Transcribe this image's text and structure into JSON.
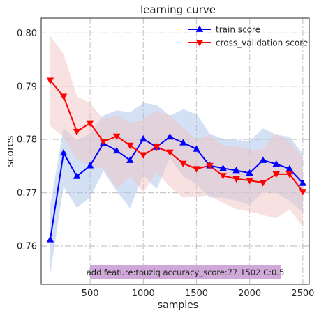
{
  "chart_data": {
    "type": "line",
    "title": "learning curve",
    "xlabel": "samples",
    "ylabel": "scores",
    "xlim": [
      40,
      2560
    ],
    "ylim": [
      0.7528,
      0.8028
    ],
    "xticks": [
      500,
      1000,
      1500,
      2000,
      2500
    ],
    "yticks": [
      0.76,
      0.77,
      0.78,
      0.79,
      0.8
    ],
    "xtick_labels": [
      "500",
      "1000",
      "1500",
      "2000",
      "2500"
    ],
    "ytick_labels": [
      "0.76",
      "0.77",
      "0.78",
      "0.79",
      "0.80"
    ],
    "grid": true,
    "grid_style": "dash-dot",
    "legend_position": "upper-right",
    "annotation": "add feature:touziq accuracy_score:77.1502 C:0.5",
    "annotation_color": "#c79ad0",
    "series": [
      {
        "name": "train score",
        "color": "#0000ff",
        "band_color": "#a9c1e8",
        "marker": "triangle-up",
        "x": [
          125,
          250,
          375,
          500,
          625,
          750,
          875,
          1000,
          1125,
          1250,
          1375,
          1500,
          1625,
          1750,
          1875,
          2000,
          2125,
          2250,
          2375,
          2500
        ],
        "y": [
          0.7612,
          0.7775,
          0.7731,
          0.7751,
          0.7793,
          0.7779,
          0.7761,
          0.7801,
          0.7786,
          0.7805,
          0.7794,
          0.7782,
          0.7751,
          0.7746,
          0.7742,
          0.7737,
          0.7761,
          0.7754,
          0.7745,
          0.7718
        ],
        "lower": [
          0.7548,
          0.7712,
          0.7672,
          0.7691,
          0.7741,
          0.7703,
          0.7671,
          0.7733,
          0.7707,
          0.7765,
          0.7731,
          0.7716,
          0.7691,
          0.7691,
          0.7685,
          0.7677,
          0.7701,
          0.7699,
          0.7685,
          0.7663
        ],
        "upper": [
          0.7676,
          0.7822,
          0.7798,
          0.7812,
          0.7845,
          0.7855,
          0.7851,
          0.7869,
          0.7865,
          0.7845,
          0.7857,
          0.7848,
          0.7811,
          0.7801,
          0.7799,
          0.7797,
          0.7821,
          0.7809,
          0.7805,
          0.7773
        ]
      },
      {
        "name": "cross_validation score",
        "color": "#ff0000",
        "band_color": "#f0c3c3",
        "marker": "triangle-down",
        "x": [
          125,
          250,
          375,
          500,
          625,
          750,
          875,
          1000,
          1125,
          1250,
          1375,
          1500,
          1625,
          1750,
          1875,
          2000,
          2125,
          2250,
          2375,
          2500
        ],
        "y": [
          0.7911,
          0.7881,
          0.7815,
          0.7831,
          0.7796,
          0.7806,
          0.7789,
          0.7771,
          0.7786,
          0.7776,
          0.7755,
          0.7745,
          0.7751,
          0.7732,
          0.7726,
          0.7723,
          0.7719,
          0.7735,
          0.7735,
          0.7702
        ],
        "lower": [
          0.7825,
          0.7805,
          0.7763,
          0.7751,
          0.7746,
          0.7708,
          0.7731,
          0.7701,
          0.7738,
          0.7711,
          0.7691,
          0.7693,
          0.7695,
          0.7681,
          0.7669,
          0.7665,
          0.7658,
          0.7652,
          0.7669,
          0.7636
        ],
        "upper": [
          0.7995,
          0.7961,
          0.7881,
          0.7868,
          0.7838,
          0.7845,
          0.7831,
          0.7838,
          0.7854,
          0.7845,
          0.7822,
          0.7799,
          0.7809,
          0.7788,
          0.7788,
          0.7781,
          0.7781,
          0.7812,
          0.7795,
          0.7766
        ]
      }
    ]
  }
}
